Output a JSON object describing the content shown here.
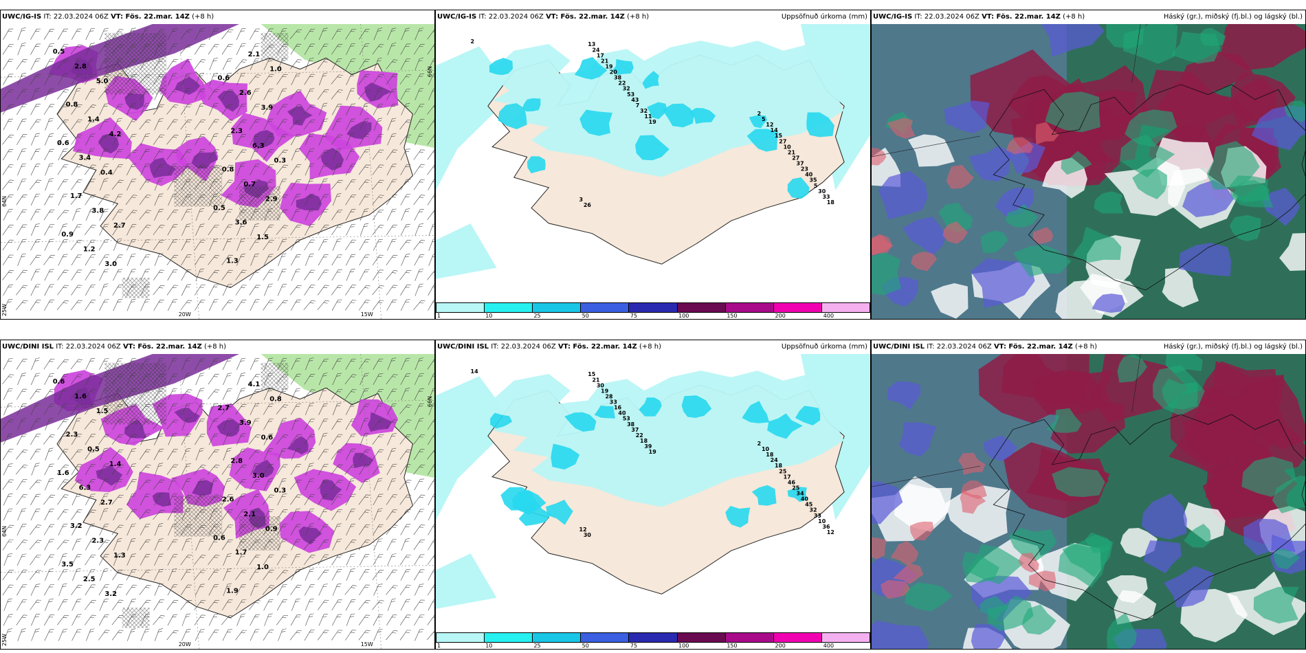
{
  "rows": [
    {
      "model": "UWC/IG-IS",
      "panels": [
        {
          "kind": "wind",
          "model": "UWC/IG-IS",
          "it": "IT: 22.03.2024 06Z",
          "vt": "VT: Fös. 22.mar. 14Z",
          "lead": "(+8 h)",
          "right_title": "",
          "values": [
            "0.5",
            "0.5",
            "0.6",
            "0.6",
            "0.9",
            "0.8",
            "0.8",
            "1.3",
            "1.7",
            "2.3",
            "2.8",
            "3.6",
            "3.4",
            "2.6",
            "1.2",
            "0.7",
            "1.4",
            "2.1",
            "3.8",
            "6.3",
            "5.0",
            "1.5",
            "0.4",
            "3.9",
            "3.0",
            "2.9",
            "4.2",
            "1.0",
            "2.7",
            "0.3"
          ],
          "axis_labels": {
            "lon1": "20W",
            "lon2": "15W",
            "lat1": "66N",
            "lat2": "64N",
            "lon_left": "25W"
          }
        },
        {
          "kind": "precip",
          "model": "UWC/IG-IS",
          "it": "IT: 22.03.2024 06Z",
          "vt": "VT: Fös. 22.mar. 14Z",
          "lead": "(+8 h)",
          "right_title": "Uppsöfnuð úrkoma (mm)",
          "values": [
            "2",
            "19",
            "18",
            "11",
            "33",
            "32",
            "30",
            "7",
            "5",
            "43",
            "35",
            "53",
            "40",
            "32",
            "23",
            "22",
            "37",
            "38",
            "27",
            "20",
            "21",
            "19",
            "10",
            "21",
            "27",
            "17",
            "15",
            "24",
            "14",
            "13",
            "12",
            "26",
            "5",
            "3",
            "2"
          ]
        },
        {
          "kind": "cloud",
          "model": "UWC/IG-IS",
          "it": "IT: 22.03.2024 06Z",
          "vt": "VT: Fös. 22.mar. 14Z",
          "lead": "(+8 h)",
          "right_title": "Háský (gr.), miðský (fj.bl.) og lágský (bl.)",
          "values": []
        }
      ]
    },
    {
      "model": "UWC/DINI ISL",
      "panels": [
        {
          "kind": "wind",
          "model": "UWC/DINI ISL",
          "it": "IT: 22.03.2024 06Z",
          "vt": "VT: Fös. 22.mar. 14Z",
          "lead": "(+8 h)",
          "right_title": "",
          "values": [
            "0.6",
            "0.6",
            "1.6",
            "2.7",
            "3.5",
            "2.6",
            "2.3",
            "1.9",
            "3.2",
            "2.8",
            "1.6",
            "1.7",
            "6.3",
            "3.9",
            "2.5",
            "2.1",
            "0.5",
            "4.1",
            "2.3",
            "3.0",
            "1.5",
            "1.0",
            "2.7",
            "0.6",
            "3.2",
            "0.9",
            "1.4",
            "0.8",
            "1.3",
            "0.3"
          ],
          "axis_labels": {
            "lon1": "20W",
            "lon2": "15W",
            "lat1": "66N",
            "lat2": "64N",
            "lon_left": "25W"
          }
        },
        {
          "kind": "precip",
          "model": "UWC/DINI ISL",
          "it": "IT: 22.03.2024 06Z",
          "vt": "VT: Fös. 22.mar. 14Z",
          "lead": "(+8 h)",
          "right_title": "Uppsöfnuð úrkoma (mm)",
          "values": [
            "14",
            "19",
            "12",
            "39",
            "36",
            "18",
            "10",
            "22",
            "33",
            "37",
            "32",
            "38",
            "45",
            "53",
            "40",
            "40",
            "34",
            "16",
            "25",
            "33",
            "46",
            "28",
            "17",
            "19",
            "25",
            "30",
            "18",
            "21",
            "24",
            "15",
            "18",
            "30",
            "10",
            "12",
            "2"
          ]
        },
        {
          "kind": "cloud",
          "model": "UWC/DINI ISL",
          "it": "IT: 22.03.2024 06Z",
          "vt": "VT: Fös. 22.mar. 14Z",
          "lead": "(+8 h)",
          "right_title": "Háský (gr.), miðský (fj.bl.) og lágský (bl.)",
          "values": []
        }
      ]
    }
  ],
  "colorbar": {
    "colors": [
      "#b9f6f6",
      "#27f0f0",
      "#19c6e6",
      "#3a5fe0",
      "#2a2ab0",
      "#6a0a50",
      "#a80a8a",
      "#f000b0",
      "#f5b0f0"
    ],
    "ticks": [
      "1",
      "10",
      "25",
      "50",
      "75",
      "100",
      "150",
      "200",
      "400"
    ]
  },
  "colors": {
    "land": "#f6e8da",
    "precip_light": "#b9f6f6",
    "precip_mid": "#27d8ee",
    "snow_pink": "#cc44dd",
    "snow_purple": "#7a2d9a",
    "green_fill": "#b8e6a8",
    "cloud_high": "#1f7a5a",
    "cloud_mid": "#8e1c46",
    "cloud_low": "#5a5ad8"
  }
}
